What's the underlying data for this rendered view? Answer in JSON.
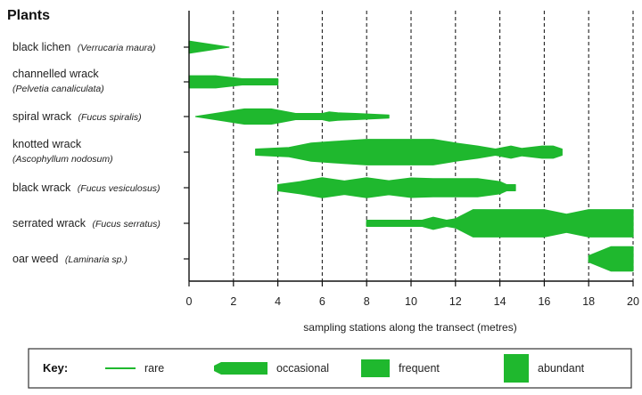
{
  "colors": {
    "abundance_fill": "#1fb82e",
    "axis": "#111111",
    "gridline": "#222222"
  },
  "chart_data": {
    "type": "kite diagram",
    "title": "Plants",
    "xlabel": "sampling stations along the transect (metres)",
    "xlim": [
      0,
      20
    ],
    "xticks": [
      0,
      2,
      4,
      6,
      8,
      10,
      12,
      14,
      16,
      18,
      20
    ],
    "gridlines": "vertical dashed every 2 m",
    "abundance_scale": {
      "rare": 1,
      "occasional": 2,
      "frequent": 3,
      "abundant": 4
    },
    "key": {
      "title": "Key:",
      "items": [
        {
          "name": "rare",
          "level": 1
        },
        {
          "name": "occasional",
          "level": 2
        },
        {
          "name": "frequent",
          "level": 3
        },
        {
          "name": "abundant",
          "level": 4
        }
      ]
    },
    "series": [
      {
        "name": "black lichen",
        "latin": "(Verrucaria maura)",
        "points": [
          [
            0,
            2
          ],
          [
            1.8,
            0
          ]
        ]
      },
      {
        "name": "channelled wrack",
        "latin": "(Pelvetia canaliculata)",
        "points": [
          [
            0,
            2
          ],
          [
            1.2,
            2
          ],
          [
            2.4,
            1
          ],
          [
            4,
            1
          ]
        ]
      },
      {
        "name": "spiral wrack",
        "latin": "(Fucus spiralis)",
        "points": [
          [
            0.3,
            0
          ],
          [
            2.5,
            2.5
          ],
          [
            3.7,
            2.5
          ],
          [
            4.8,
            1
          ],
          [
            6,
            1
          ],
          [
            6.3,
            1.5
          ],
          [
            6.7,
            1.2
          ],
          [
            7.5,
            1
          ],
          [
            9,
            0.5
          ]
        ]
      },
      {
        "name": "knotted wrack",
        "latin": "(Ascophyllum nodosum)",
        "points": [
          [
            3,
            1
          ],
          [
            4.5,
            1.5
          ],
          [
            5.5,
            3
          ],
          [
            6.5,
            3.5
          ],
          [
            8,
            4.2
          ],
          [
            10,
            4.2
          ],
          [
            11,
            4.2
          ],
          [
            12,
            3
          ],
          [
            13,
            2
          ],
          [
            13.8,
            1
          ],
          [
            14.5,
            2
          ],
          [
            15,
            1.2
          ],
          [
            15.9,
            2
          ],
          [
            16.4,
            2
          ],
          [
            16.8,
            1
          ]
        ]
      },
      {
        "name": "black wrack",
        "latin": "(Fucus vesiculosus)",
        "points": [
          [
            4,
            1
          ],
          [
            5,
            2
          ],
          [
            6,
            3.3
          ],
          [
            7,
            2.2
          ],
          [
            8,
            3.3
          ],
          [
            9,
            2.3
          ],
          [
            10,
            3.2
          ],
          [
            11,
            3
          ],
          [
            12,
            3
          ],
          [
            13,
            3
          ],
          [
            14,
            2
          ],
          [
            14.3,
            1
          ],
          [
            14.7,
            1
          ]
        ]
      },
      {
        "name": "serrated wrack",
        "latin": "(Fucus serratus)",
        "points": [
          [
            8,
            1
          ],
          [
            10.5,
            1
          ],
          [
            11,
            2
          ],
          [
            11.6,
            1
          ],
          [
            12,
            1.5
          ],
          [
            12.8,
            4.5
          ],
          [
            16,
            4.5
          ],
          [
            17,
            3
          ],
          [
            18,
            4.5
          ],
          [
            20,
            4.5
          ]
        ]
      },
      {
        "name": "oar weed",
        "latin": "(Laminaria sp.)",
        "points": [
          [
            18,
            1
          ],
          [
            19,
            4
          ],
          [
            20,
            4
          ]
        ]
      }
    ]
  }
}
